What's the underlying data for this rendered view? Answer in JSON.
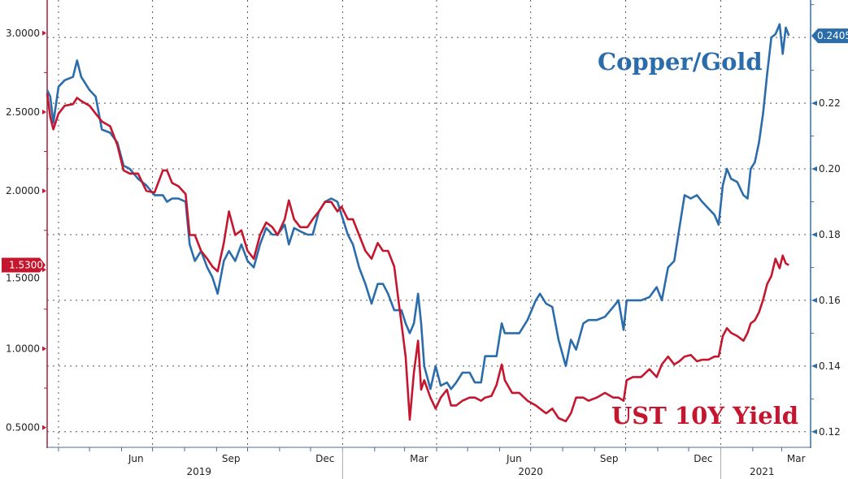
{
  "chart_data": {
    "type": "line",
    "title": "",
    "xlabel": "",
    "ylabel_left": "",
    "ylabel_right": "",
    "xlim": [
      "2019-03-21",
      "2021-03-29"
    ],
    "ylim_left": [
      0.39,
      3.21
    ],
    "ylim_right": [
      0.116,
      0.2514
    ],
    "grid": true,
    "x": [
      "2019-03-21",
      "2019-03-24",
      "2019-03-27",
      "2019-04-01",
      "2019-04-07",
      "2019-04-15",
      "2019-04-19",
      "2019-04-23",
      "2019-05-01",
      "2019-05-07",
      "2019-05-13",
      "2019-05-21",
      "2019-05-28",
      "2019-06-03",
      "2019-06-09",
      "2019-06-17",
      "2019-06-25",
      "2019-07-03",
      "2019-07-11",
      "2019-07-15",
      "2019-07-20",
      "2019-07-26",
      "2019-08-02",
      "2019-08-06",
      "2019-08-11",
      "2019-08-17",
      "2019-08-23",
      "2019-08-28",
      "2019-09-02",
      "2019-09-08",
      "2019-09-13",
      "2019-09-19",
      "2019-09-25",
      "2019-10-01",
      "2019-10-07",
      "2019-10-13",
      "2019-10-19",
      "2019-10-25",
      "2019-10-30",
      "2019-11-06",
      "2019-11-10",
      "2019-11-15",
      "2019-11-21",
      "2019-11-28",
      "2019-12-03",
      "2019-12-09",
      "2019-12-15",
      "2019-12-21",
      "2019-12-27",
      "2019-12-31",
      "2020-01-06",
      "2020-01-11",
      "2020-01-17",
      "2020-01-23",
      "2020-01-29",
      "2020-02-04",
      "2020-02-09",
      "2020-02-14",
      "2020-02-20",
      "2020-02-24",
      "2020-02-27",
      "2020-03-02",
      "2020-03-06",
      "2020-03-10",
      "2020-03-14",
      "2020-03-17",
      "2020-03-20",
      "2020-03-26",
      "2020-03-31",
      "2020-04-05",
      "2020-04-11",
      "2020-04-15",
      "2020-04-20",
      "2020-04-26",
      "2020-05-03",
      "2020-05-08",
      "2020-05-14",
      "2020-05-18",
      "2020-05-24",
      "2020-05-29",
      "2020-06-03",
      "2020-06-06",
      "2020-06-13",
      "2020-06-20",
      "2020-06-28",
      "2020-07-06",
      "2020-07-10",
      "2020-07-16",
      "2020-07-22",
      "2020-07-28",
      "2020-08-04",
      "2020-08-09",
      "2020-08-14",
      "2020-08-21",
      "2020-08-26",
      "2020-09-03",
      "2020-09-11",
      "2020-09-19",
      "2020-09-24",
      "2020-09-29",
      "2020-10-02",
      "2020-10-08",
      "2020-10-16",
      "2020-10-24",
      "2020-10-31",
      "2020-11-05",
      "2020-11-11",
      "2020-11-17",
      "2020-11-22",
      "2020-11-27",
      "2020-12-03",
      "2020-12-09",
      "2020-12-14",
      "2020-12-20",
      "2020-12-26",
      "2020-12-30",
      "2021-01-03",
      "2021-01-07",
      "2021-01-11",
      "2021-01-17",
      "2021-01-23",
      "2021-01-27",
      "2021-01-30",
      "2021-02-03",
      "2021-02-07",
      "2021-02-11",
      "2021-02-15",
      "2021-02-19",
      "2021-02-23",
      "2021-02-27",
      "2021-03-02",
      "2021-03-05",
      "2021-03-08"
    ],
    "series": [
      {
        "name": "Copper/Gold",
        "axis": "right",
        "color": "#2b6cab",
        "values": [
          0.224,
          0.222,
          0.214,
          0.225,
          0.227,
          0.228,
          0.233,
          0.228,
          0.224,
          0.222,
          0.212,
          0.211,
          0.208,
          0.201,
          0.2,
          0.197,
          0.195,
          0.192,
          0.192,
          0.19,
          0.191,
          0.191,
          0.19,
          0.177,
          0.172,
          0.175,
          0.17,
          0.167,
          0.162,
          0.172,
          0.175,
          0.172,
          0.177,
          0.172,
          0.17,
          0.177,
          0.182,
          0.18,
          0.18,
          0.183,
          0.177,
          0.182,
          0.181,
          0.18,
          0.18,
          0.187,
          0.19,
          0.191,
          0.19,
          0.186,
          0.18,
          0.177,
          0.17,
          0.165,
          0.159,
          0.165,
          0.165,
          0.162,
          0.157,
          0.157,
          0.157,
          0.153,
          0.15,
          0.153,
          0.162,
          0.153,
          0.14,
          0.133,
          0.14,
          0.134,
          0.135,
          0.133,
          0.135,
          0.138,
          0.138,
          0.135,
          0.135,
          0.143,
          0.143,
          0.143,
          0.153,
          0.15,
          0.15,
          0.15,
          0.154,
          0.16,
          0.162,
          0.159,
          0.158,
          0.148,
          0.14,
          0.148,
          0.145,
          0.153,
          0.154,
          0.154,
          0.155,
          0.158,
          0.16,
          0.151,
          0.16,
          0.16,
          0.16,
          0.161,
          0.164,
          0.16,
          0.17,
          0.172,
          0.182,
          0.192,
          0.191,
          0.192,
          0.19,
          0.188,
          0.186,
          0.183,
          0.195,
          0.2,
          0.197,
          0.196,
          0.192,
          0.191,
          0.2,
          0.202,
          0.208,
          0.217,
          0.229,
          0.24,
          0.241,
          0.244,
          0.235,
          0.243,
          0.2405
        ]
      },
      {
        "name": "UST 10Y Yield",
        "axis": "left",
        "color": "#c4172f",
        "values": [
          2.62,
          2.47,
          2.39,
          2.49,
          2.54,
          2.55,
          2.59,
          2.57,
          2.54,
          2.49,
          2.44,
          2.41,
          2.29,
          2.13,
          2.11,
          2.11,
          2.0,
          1.99,
          2.13,
          2.13,
          2.05,
          2.03,
          1.98,
          1.72,
          1.72,
          1.62,
          1.57,
          1.52,
          1.49,
          1.67,
          1.87,
          1.72,
          1.75,
          1.62,
          1.57,
          1.72,
          1.8,
          1.77,
          1.72,
          1.82,
          1.94,
          1.82,
          1.77,
          1.77,
          1.82,
          1.87,
          1.93,
          1.93,
          1.87,
          1.9,
          1.82,
          1.82,
          1.72,
          1.62,
          1.57,
          1.67,
          1.62,
          1.62,
          1.52,
          1.31,
          1.16,
          0.95,
          0.55,
          0.85,
          1.05,
          0.74,
          0.8,
          0.69,
          0.62,
          0.69,
          0.74,
          0.64,
          0.64,
          0.67,
          0.69,
          0.69,
          0.67,
          0.69,
          0.7,
          0.77,
          0.9,
          0.8,
          0.72,
          0.72,
          0.67,
          0.64,
          0.62,
          0.59,
          0.62,
          0.56,
          0.54,
          0.59,
          0.69,
          0.69,
          0.67,
          0.69,
          0.72,
          0.69,
          0.69,
          0.67,
          0.8,
          0.82,
          0.82,
          0.87,
          0.82,
          0.9,
          0.95,
          0.9,
          0.92,
          0.95,
          0.96,
          0.92,
          0.93,
          0.93,
          0.95,
          0.95,
          1.08,
          1.13,
          1.1,
          1.08,
          1.05,
          1.1,
          1.16,
          1.18,
          1.23,
          1.31,
          1.41,
          1.46,
          1.57,
          1.51,
          1.59,
          1.54,
          1.53
        ]
      }
    ],
    "left_ticks": [
      "3.0000",
      "2.5000",
      "2.0000",
      "1.5000",
      "1.0000",
      "0.5000"
    ],
    "left_tick_values": [
      3.0,
      2.5,
      2.0,
      1.5,
      1.0,
      0.5
    ],
    "right_ticks": [
      "0.22",
      "0.20",
      "0.18",
      "0.16",
      "0.14",
      "0.12"
    ],
    "right_tick_values": [
      0.22,
      0.2,
      0.18,
      0.16,
      0.14,
      0.12
    ],
    "right_grid_values": [
      0.24,
      0.22,
      0.2,
      0.18,
      0.16,
      0.14,
      0.12
    ],
    "month_labels": [
      {
        "label": "Jun",
        "date": "2019-06-15"
      },
      {
        "label": "Sep",
        "date": "2019-09-15"
      },
      {
        "label": "Dec",
        "date": "2019-12-15"
      },
      {
        "label": "Mar",
        "date": "2020-03-15"
      },
      {
        "label": "Jun",
        "date": "2020-06-15"
      },
      {
        "label": "Sep",
        "date": "2020-09-15"
      },
      {
        "label": "Dec",
        "date": "2020-12-15"
      },
      {
        "label": "Mar",
        "date": "2021-03-15"
      }
    ],
    "vertical_grid_dates": [
      "2019-04-01",
      "2019-07-01",
      "2019-10-01",
      "2020-01-01",
      "2020-04-01",
      "2020-07-01",
      "2020-10-01",
      "2021-01-01"
    ],
    "year_labels": [
      {
        "label": "2019",
        "date": "2019-08-15"
      },
      {
        "label": "2020",
        "date": "2020-07-01"
      },
      {
        "label": "2021",
        "date": "2021-02-10"
      }
    ],
    "year_dividers": [
      "2020-01-01",
      "2021-01-01"
    ],
    "last_value_left": {
      "label": "1.5300",
      "value": 1.53,
      "color": "#c4172f"
    },
    "last_value_right": {
      "label": "0.2405",
      "value": 0.2405,
      "color": "#2b6cab"
    },
    "annotations": [
      {
        "text": "Copper/Gold",
        "color": "#2b6cab"
      },
      {
        "text": "UST 10Y Yield",
        "color": "#c4172f"
      }
    ]
  }
}
